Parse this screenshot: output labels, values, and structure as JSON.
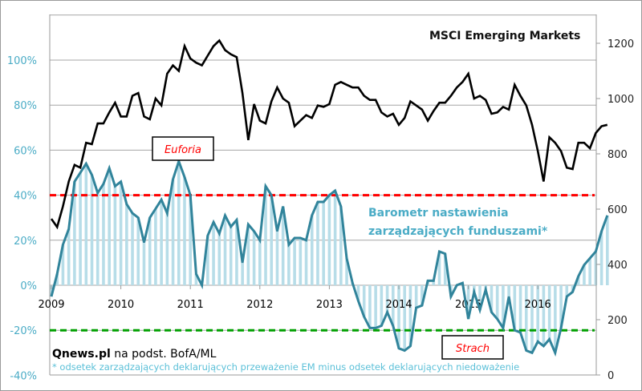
{
  "chart_data": {
    "type": "line",
    "title": "MSCI Emerging Markets",
    "series_label": "Barometr nastawienia zarządzających funduszami*",
    "left_axis": {
      "ticks": [
        "-40%",
        "-20%",
        "0%",
        "20%",
        "40%",
        "60%",
        "80%",
        "100%"
      ],
      "tick_values": [
        -40,
        -20,
        0,
        20,
        40,
        60,
        80,
        100
      ],
      "range": [
        -40,
        120
      ]
    },
    "right_axis": {
      "ticks": [
        "0",
        "200",
        "400",
        "600",
        "800",
        "1000",
        "1200"
      ],
      "tick_values": [
        0,
        200,
        400,
        600,
        800,
        1000,
        1200
      ],
      "range": [
        0,
        1300
      ]
    },
    "x_axis": {
      "ticks": [
        "2009",
        "2010",
        "2011",
        "2012",
        "2013",
        "2014",
        "2015",
        "2016"
      ],
      "start": "2009-01",
      "frequency": "monthly"
    },
    "grid": true,
    "reference_lines": [
      {
        "name": "euforia-threshold",
        "value": 40,
        "color": "#ff0000",
        "style": "dashed"
      },
      {
        "name": "strach-threshold",
        "value": -20,
        "color": "#00a000",
        "style": "dashed"
      }
    ],
    "annotations": [
      {
        "text": "Euforia",
        "color": "#ff0000"
      },
      {
        "text": "Strach",
        "color": "#ff0000"
      }
    ],
    "series": [
      {
        "name": "MSCI Emerging Markets",
        "axis": "right",
        "color": "#000000",
        "values": [
          565,
          535,
          610,
          700,
          760,
          750,
          840,
          835,
          910,
          910,
          950,
          985,
          935,
          935,
          1010,
          1020,
          935,
          925,
          1000,
          975,
          1090,
          1120,
          1100,
          1190,
          1145,
          1130,
          1120,
          1155,
          1190,
          1210,
          1175,
          1160,
          1150,
          1020,
          850,
          980,
          920,
          910,
          990,
          1040,
          1000,
          985,
          900,
          920,
          940,
          930,
          975,
          970,
          980,
          1050,
          1060,
          1050,
          1040,
          1040,
          1010,
          995,
          995,
          950,
          935,
          945,
          905,
          930,
          990,
          975,
          960,
          920,
          955,
          985,
          985,
          1010,
          1040,
          1060,
          1090,
          1000,
          1010,
          995,
          945,
          950,
          970,
          960,
          1050,
          1010,
          975,
          905,
          810,
          700,
          860,
          840,
          810,
          750,
          745,
          840,
          840,
          820,
          875,
          900,
          905
        ]
      },
      {
        "name": "Barometr nastawienia zarządzających funduszami*",
        "axis": "left",
        "color": "#31849b",
        "values": [
          -5,
          5,
          18,
          25,
          46,
          50,
          54,
          49,
          41,
          45,
          52,
          44,
          46,
          36,
          32,
          30,
          19,
          30,
          34,
          38,
          32,
          47,
          55,
          48,
          40,
          5,
          0,
          22,
          28,
          23,
          31,
          26,
          29,
          10,
          27,
          24,
          20,
          44,
          40,
          24,
          35,
          18,
          21,
          21,
          20,
          31,
          37,
          37,
          40,
          42,
          35,
          12,
          1,
          -7,
          -14,
          -19,
          -19,
          -18,
          -12,
          -18,
          -28,
          -29,
          -27,
          -10,
          -9,
          2,
          2,
          15,
          14,
          -5,
          0,
          1,
          -15,
          -3,
          -11,
          -2,
          -12,
          -15,
          -19,
          -5,
          -20,
          -21,
          -29,
          -30,
          -25,
          -27,
          -24,
          -30,
          -19,
          -5,
          -3,
          4,
          9,
          12,
          15,
          24,
          31
        ]
      }
    ]
  },
  "footer": {
    "source_bold": "Qnews.pl",
    "source_rest": " na podst. BofA/ML",
    "footnote": "* odsetek zarządzających deklarujących przeważenie EM minus odsetek deklarujących niedoważenie"
  }
}
